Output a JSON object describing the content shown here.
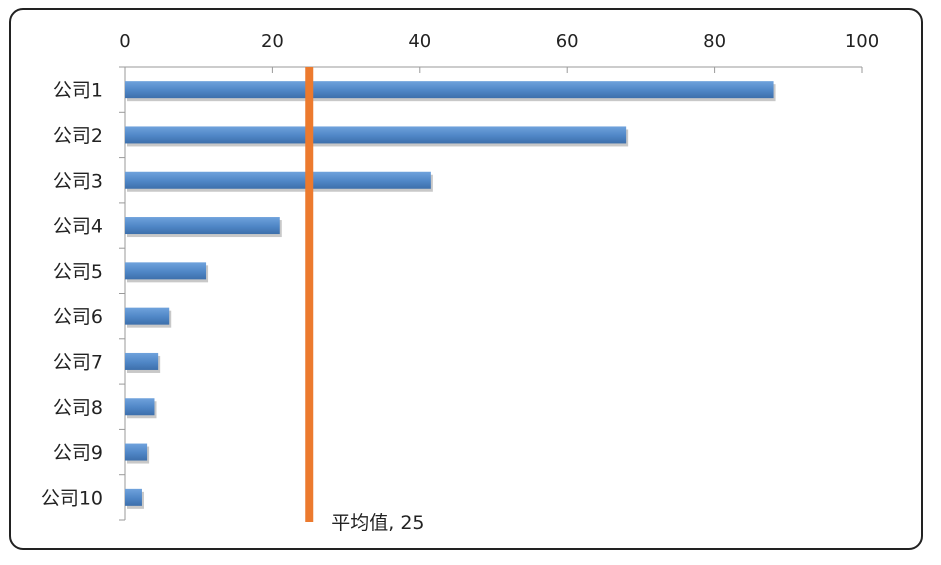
{
  "chart_data": {
    "type": "bar",
    "orientation": "horizontal",
    "categories": [
      "公司1",
      "公司2",
      "公司3",
      "公司4",
      "公司5",
      "公司6",
      "公司7",
      "公司8",
      "公司9",
      "公司10"
    ],
    "values": [
      88,
      68,
      41.5,
      21,
      11,
      6,
      4.5,
      4,
      3,
      2.3
    ],
    "xlim": [
      0,
      100
    ],
    "x_ticks": [
      "0",
      "20",
      "40",
      "60",
      "80",
      "100"
    ],
    "x_axis_position": "top",
    "grid": false,
    "bar_color": "#4f86c6",
    "reference_line": {
      "value": 25,
      "label": "平均值, 25",
      "color": "#ec7a2e"
    }
  }
}
